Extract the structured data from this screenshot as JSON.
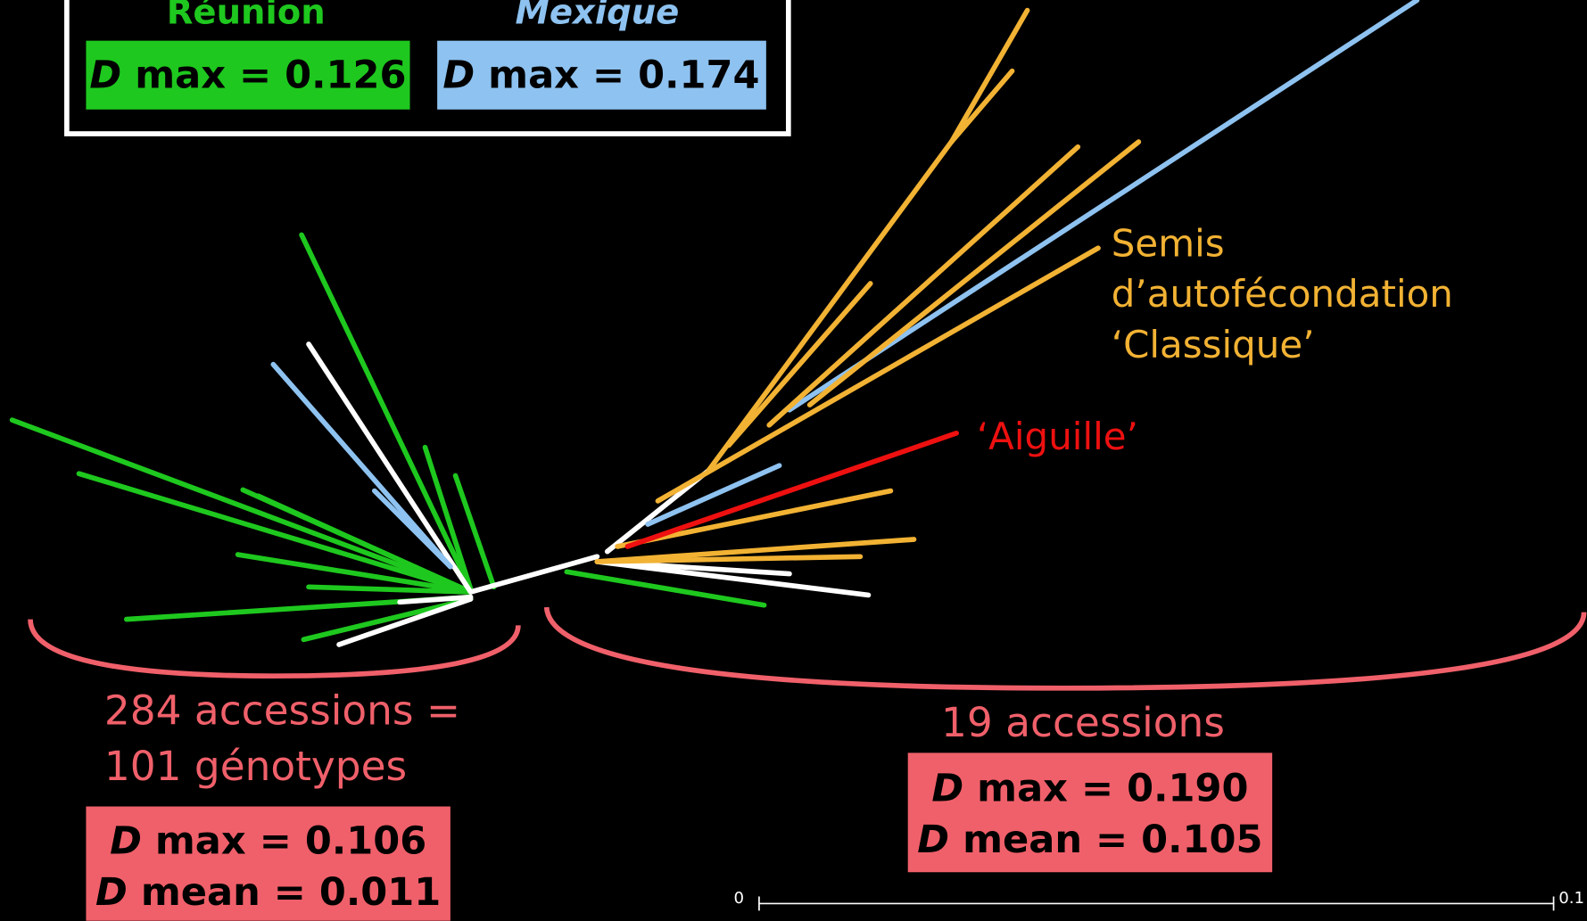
{
  "legend": {
    "reunion": "Réunion",
    "mexique": "Mexique",
    "reunion_box": {
      "var": "D",
      "text": "max = 0.126"
    },
    "mexique_box": {
      "var": "D",
      "text": "max = 0.174"
    }
  },
  "labels": {
    "semis": [
      "Semis",
      "d’autofécondation",
      "‘Classique’"
    ],
    "aiguille": "‘Aiguille’"
  },
  "left_group": {
    "lines": [
      "284 accessions =",
      "101 génotypes"
    ],
    "box": [
      {
        "var": "D",
        "text": "max = 0.106"
      },
      {
        "var": "D",
        "text": "mean = 0.011"
      }
    ]
  },
  "right_group": {
    "title": "19 accessions",
    "box": [
      {
        "var": "D",
        "text": "max = 0.190"
      },
      {
        "var": "D",
        "text": "mean = 0.105"
      }
    ]
  },
  "scale_bar": {
    "start": "0",
    "end": "0.1"
  }
}
